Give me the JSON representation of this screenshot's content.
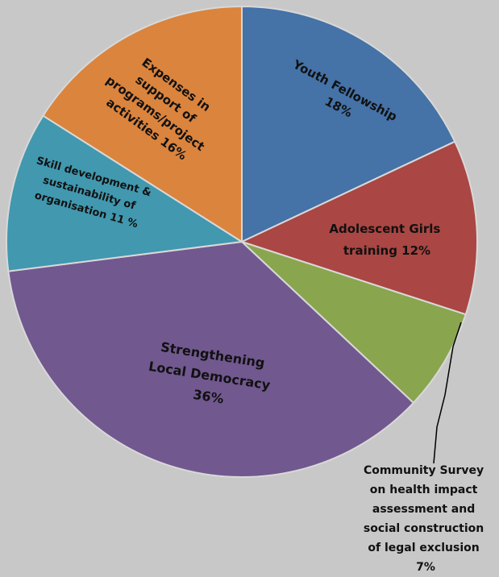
{
  "chart_data": {
    "type": "pie",
    "title": "",
    "slices": [
      {
        "label": "Youth Fellowship",
        "pct_label": "18%",
        "value": 18,
        "color": "#4572a7"
      },
      {
        "label": "Adolescent Girls training",
        "pct_label": "12%",
        "value": 12,
        "color": "#aa4643"
      },
      {
        "label": "Community Survey on health impact assessment and social construction of legal exclusion",
        "pct_label": "7%",
        "value": 7,
        "color": "#89a54e"
      },
      {
        "label": "Strengthening Local Democracy",
        "pct_label": "36%",
        "value": 36,
        "color": "#71588f"
      },
      {
        "label": "Skill development & sustainability of organisation",
        "pct_label": "11 %",
        "value": 11,
        "color": "#4198af"
      },
      {
        "label": "Expenses in support of programs/project activities",
        "pct_label": "16%",
        "value": 16,
        "color": "#db843d"
      }
    ],
    "start_angle_deg": 0,
    "direction": "clockwise",
    "legend": "none"
  },
  "labels": {
    "youth": [
      "Youth Fellowship",
      "18%"
    ],
    "girls": [
      "Adolescent Girls",
      "training 12%"
    ],
    "survey": [
      "Community Survey",
      "on health impact",
      "assessment and",
      "social construction",
      "of legal exclusion",
      "7%"
    ],
    "democracy": [
      "Strengthening",
      "Local Democracy",
      "36%"
    ],
    "skill": [
      "Skill development &",
      "sustainability of",
      "organisation 11 %"
    ],
    "expenses": [
      "Expenses in",
      "support of",
      "programs/project",
      "activities 16%"
    ]
  }
}
